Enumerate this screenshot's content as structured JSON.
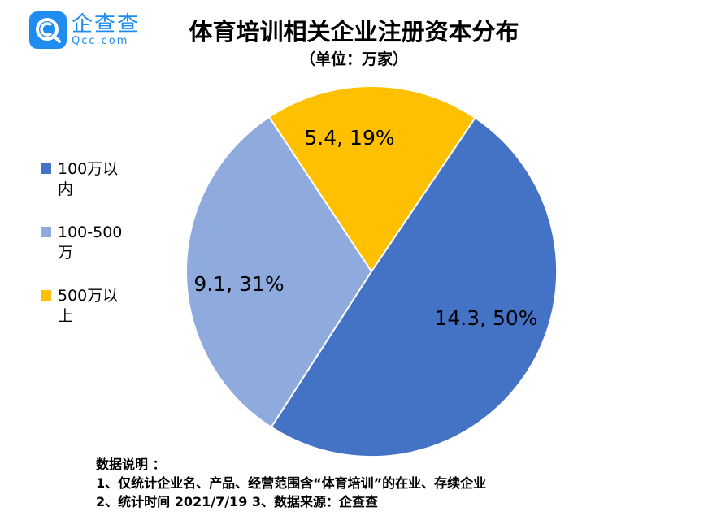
{
  "logo": {
    "cn": "企查查",
    "en": "Qcc.com",
    "icon": "qcc-logo-icon"
  },
  "chart_data": {
    "type": "pie",
    "title": "体育培训相关企业注册资本分布",
    "subtitle": "（单位：万家）",
    "categories": [
      "100万以内",
      "100-500万",
      "500万以上"
    ],
    "values": [
      14.3,
      9.1,
      5.4
    ],
    "percents": [
      "50%",
      "31%",
      "19%"
    ],
    "data_labels": [
      "14.3, 50%",
      "9.1, 31%",
      "5.4, 19%"
    ],
    "colors": [
      "#4472c4",
      "#8faadc",
      "#ffc000"
    ],
    "legend_position": "left"
  },
  "notes": {
    "heading": "数据说明 ：",
    "line1": "1、仅统计企业名、产品、经营范围含“体育培训”的在业、存续企业",
    "line2": "2、统计时间  2021/7/19     3、数据来源：企查查"
  }
}
